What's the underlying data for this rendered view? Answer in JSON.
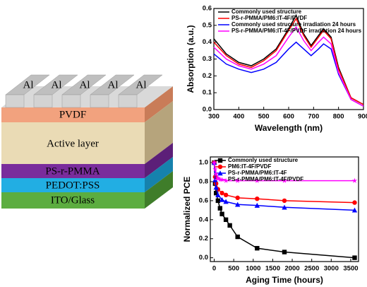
{
  "diagram": {
    "electrodes": [
      "Al",
      "Al",
      "Al",
      "Al",
      "Al"
    ],
    "layers": [
      "PVDF",
      "Active layer",
      "PS-r-PMMA",
      "PEDOT:PSS",
      "ITO/Glass"
    ]
  },
  "chart_data": [
    {
      "type": "line",
      "xlabel": "Wavelength (nm)",
      "ylabel": "Absorption (a.u.)",
      "x": [
        300,
        350,
        400,
        450,
        500,
        550,
        600,
        630,
        660,
        690,
        720,
        740,
        770,
        800,
        850,
        900
      ],
      "series": [
        {
          "name": "Commonly used structure",
          "color": "#000000",
          "values": [
            0.42,
            0.33,
            0.28,
            0.26,
            0.3,
            0.36,
            0.48,
            0.56,
            0.45,
            0.38,
            0.44,
            0.48,
            0.43,
            0.25,
            0.07,
            0.03
          ]
        },
        {
          "name": "PS-r-PMMA/PM6:IT-4F/PVDF",
          "color": "#ff0000",
          "values": [
            0.4,
            0.32,
            0.27,
            0.25,
            0.29,
            0.35,
            0.47,
            0.54,
            0.44,
            0.37,
            0.43,
            0.47,
            0.42,
            0.24,
            0.07,
            0.03
          ]
        },
        {
          "name": "Commonly used structure irradiation 24 hours",
          "color": "#0000ff",
          "values": [
            0.33,
            0.27,
            0.24,
            0.22,
            0.24,
            0.28,
            0.36,
            0.4,
            0.36,
            0.32,
            0.36,
            0.39,
            0.36,
            0.21,
            0.06,
            0.02
          ]
        },
        {
          "name": "PS-r-PMMA/PM6:IT-4F/PVDF irradiation 24 hours",
          "color": "#ff00ff",
          "values": [
            0.37,
            0.3,
            0.26,
            0.24,
            0.27,
            0.32,
            0.43,
            0.49,
            0.41,
            0.35,
            0.4,
            0.43,
            0.39,
            0.22,
            0.06,
            0.02
          ]
        }
      ],
      "xlim": [
        300,
        900
      ],
      "xticks": [
        300,
        400,
        500,
        600,
        700,
        800,
        900
      ],
      "ylim": [
        0,
        0.6
      ],
      "yticks": [
        {
          "value": 0,
          "label": "0.0"
        },
        0.1,
        0.2,
        0.3,
        0.4,
        0.5,
        0.6
      ],
      "legend": "upper left"
    },
    {
      "type": "line",
      "xlabel": "Aging Time (hours)",
      "ylabel": "Normalized PCE",
      "series": [
        {
          "name": "Commonly used structure",
          "color": "#000000",
          "marker": "square",
          "x": [
            0,
            24,
            48,
            96,
            150,
            200,
            300,
            400,
            600,
            1100,
            1800,
            3600
          ],
          "values": [
            1.0,
            0.78,
            0.68,
            0.6,
            0.52,
            0.46,
            0.4,
            0.34,
            0.22,
            0.1,
            0.06,
            0.0
          ]
        },
        {
          "name": "PM6:IT-4F/PVDF",
          "color": "#ff0000",
          "marker": "circle",
          "x": [
            0,
            24,
            48,
            96,
            200,
            300,
            600,
            1100,
            1800,
            3600
          ],
          "values": [
            1.0,
            0.85,
            0.78,
            0.72,
            0.68,
            0.66,
            0.63,
            0.62,
            0.6,
            0.58
          ]
        },
        {
          "name": "PS-r-PMMA/PM6:IT-4F",
          "color": "#0000ff",
          "marker": "triangle",
          "x": [
            0,
            24,
            48,
            96,
            200,
            300,
            600,
            1100,
            1800,
            3600
          ],
          "values": [
            1.0,
            0.82,
            0.74,
            0.66,
            0.61,
            0.59,
            0.56,
            0.55,
            0.53,
            0.5
          ]
        },
        {
          "name": "PS-r-PMMA/PM6:IT-4F/PVDF",
          "color": "#ff00ff",
          "marker": "star",
          "x": [
            0,
            24,
            48,
            96,
            200,
            300,
            600,
            1100,
            1800,
            3600
          ],
          "values": [
            1.0,
            0.93,
            0.88,
            0.84,
            0.82,
            0.81,
            0.81,
            0.81,
            0.81,
            0.81
          ]
        }
      ],
      "xlim": [
        -100,
        3700
      ],
      "xticks": [
        0,
        500,
        1000,
        1500,
        2000,
        2500,
        3000,
        3500
      ],
      "ylim": [
        -0.04,
        1.06
      ],
      "yticks": [
        {
          "value": 0,
          "label": "0.0"
        },
        {
          "value": 0.2,
          "label": "0.2"
        },
        {
          "value": 0.4,
          "label": "0.4"
        },
        {
          "value": 0.6,
          "label": "0.6"
        },
        {
          "value": 0.8,
          "label": "0.8"
        },
        {
          "value": 1,
          "label": "1.0"
        }
      ],
      "legend": "upper left"
    }
  ]
}
